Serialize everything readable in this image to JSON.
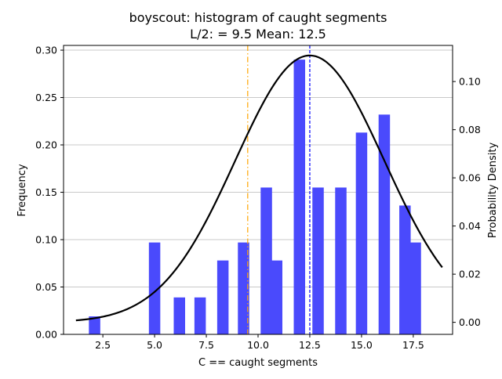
{
  "chart_data": {
    "type": "bar",
    "title_line1": "boyscout: histogram of caught segments",
    "title_line2": "L/2: = 9.5 Mean: 12.5",
    "xlabel": "C == caught segments",
    "ylabel_left": "Frequency",
    "ylabel_right": "Probability Density",
    "xlim": [
      0.6,
      19.4
    ],
    "ylim_left": [
      0,
      0.305
    ],
    "ylim_right": [
      -0.005,
      0.115
    ],
    "x_ticks": [
      2.5,
      5.0,
      7.5,
      10.0,
      12.5,
      15.0,
      17.5
    ],
    "x_tick_labels": [
      "2.5",
      "5.0",
      "7.5",
      "10.0",
      "12.5",
      "15.0",
      "17.5"
    ],
    "y_left_ticks": [
      0.0,
      0.05,
      0.1,
      0.15,
      0.2,
      0.25,
      0.3
    ],
    "y_left_tick_labels": [
      "0.00",
      "0.05",
      "0.10",
      "0.15",
      "0.20",
      "0.25",
      "0.30"
    ],
    "y_right_ticks": [
      0.0,
      0.02,
      0.04,
      0.06,
      0.08,
      0.1
    ],
    "y_right_tick_labels": [
      "0.00",
      "0.02",
      "0.04",
      "0.06",
      "0.08",
      "0.10"
    ],
    "grid": "horizontal",
    "bar_color": "#4a4afc",
    "bar_width": 0.55,
    "bars": [
      {
        "x": 2.1,
        "value": 0.019
      },
      {
        "x": 5.0,
        "value": 0.097
      },
      {
        "x": 6.2,
        "value": 0.039
      },
      {
        "x": 7.2,
        "value": 0.039
      },
      {
        "x": 8.3,
        "value": 0.078
      },
      {
        "x": 9.3,
        "value": 0.097
      },
      {
        "x": 10.4,
        "value": 0.155
      },
      {
        "x": 10.9,
        "value": 0.078
      },
      {
        "x": 12.0,
        "value": 0.29
      },
      {
        "x": 12.9,
        "value": 0.155
      },
      {
        "x": 14.0,
        "value": 0.155
      },
      {
        "x": 15.0,
        "value": 0.213
      },
      {
        "x": 16.1,
        "value": 0.232
      },
      {
        "x": 17.1,
        "value": 0.136
      },
      {
        "x": 17.6,
        "value": 0.097
      }
    ],
    "density_curve": {
      "color": "#000000",
      "mean": 12.5,
      "std": 3.6,
      "x_start": 1.2,
      "x_end": 18.9
    },
    "vlines": [
      {
        "x": 9.5,
        "color": "#ffa500",
        "style": "dashdot",
        "label": "L/2"
      },
      {
        "x": 12.5,
        "color": "#0000ff",
        "style": "dashed",
        "label": "Mean"
      }
    ]
  }
}
